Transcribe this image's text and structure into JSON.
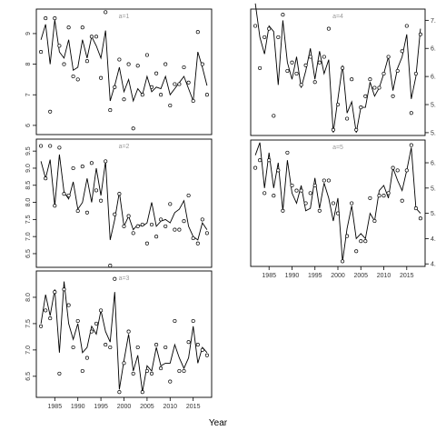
{
  "chart_data": {
    "type": "line",
    "xlabel": "Year",
    "panels": [
      {
        "label": "a=1",
        "x": [
          1982,
          1983,
          1984,
          1985,
          1986,
          1987,
          1988,
          1989,
          1990,
          1991,
          1992,
          1993,
          1994,
          1995,
          1996,
          1997,
          1998,
          1999,
          2000,
          2001,
          2002,
          2003,
          2004,
          2005,
          2006,
          2007,
          2008,
          2009,
          2010,
          2011,
          2012,
          2013,
          2014,
          2015,
          2016,
          2017,
          2018
        ],
        "points": [
          8.4,
          9.5,
          6.45,
          9.5,
          8.6,
          8.0,
          9.2,
          7.6,
          7.5,
          9.2,
          8.1,
          8.9,
          8.9,
          7.55,
          9.7,
          6.5,
          7.25,
          8.15,
          6.85,
          8.0,
          5.9,
          7.95,
          7.0,
          8.3,
          7.25,
          7.7,
          7.0,
          8.0,
          6.65,
          7.35,
          7.35,
          7.9,
          7.4,
          6.8,
          9.05,
          8.0,
          7.0
        ],
        "line": [
          8.8,
          9.3,
          8.0,
          9.45,
          8.4,
          8.2,
          8.8,
          7.8,
          7.9,
          8.8,
          8.2,
          8.9,
          8.6,
          8.2,
          9.1,
          6.8,
          7.3,
          7.9,
          7.1,
          7.5,
          6.8,
          7.2,
          7.0,
          7.6,
          7.1,
          7.25,
          7.2,
          7.6,
          7.0,
          7.2,
          7.4,
          7.6,
          7.2,
          6.8,
          8.4,
          7.9,
          7.3
        ],
        "ylim": [
          5.7,
          9.8
        ],
        "yticks": [
          6,
          7,
          8,
          9
        ]
      },
      {
        "label": "a=2",
        "x": [
          1982,
          1983,
          1984,
          1985,
          1986,
          1987,
          1988,
          1989,
          1990,
          1991,
          1992,
          1993,
          1994,
          1995,
          1996,
          1997,
          1998,
          1999,
          2000,
          2001,
          2002,
          2003,
          2004,
          2005,
          2006,
          2007,
          2008,
          2009,
          2010,
          2011,
          2012,
          2013,
          2014,
          2015,
          2016,
          2017,
          2018
        ],
        "points": [
          9.65,
          8.7,
          9.65,
          7.9,
          9.6,
          8.25,
          8.2,
          9.0,
          7.75,
          9.05,
          7.7,
          9.15,
          8.35,
          8.05,
          9.2,
          6.15,
          7.65,
          8.25,
          7.3,
          7.6,
          7.1,
          7.3,
          7.35,
          6.8,
          7.35,
          7.0,
          7.5,
          7.3,
          7.95,
          7.2,
          7.2,
          7.45,
          8.2,
          6.95,
          6.8,
          7.5,
          7.1
        ],
        "line": [
          9.2,
          8.7,
          9.25,
          7.9,
          9.4,
          8.3,
          8.1,
          8.6,
          7.8,
          8.0,
          8.7,
          8.0,
          9.0,
          8.2,
          9.2,
          6.9,
          7.5,
          8.3,
          7.3,
          7.6,
          7.2,
          7.35,
          7.3,
          7.4,
          8.0,
          7.3,
          7.45,
          7.5,
          7.4,
          7.7,
          7.8,
          8.05,
          7.3,
          7.0,
          6.9,
          7.4,
          7.2
        ],
        "ylim": [
          6.1,
          9.85
        ],
        "yticks": [
          6.5,
          7.0,
          7.5,
          8.0,
          8.5,
          9.0,
          9.5
        ]
      },
      {
        "label": "a=3",
        "x": [
          1982,
          1983,
          1984,
          1985,
          1986,
          1987,
          1988,
          1989,
          1990,
          1991,
          1992,
          1993,
          1994,
          1995,
          1996,
          1997,
          1998,
          1999,
          2000,
          2001,
          2002,
          2003,
          2004,
          2005,
          2006,
          2007,
          2008,
          2009,
          2010,
          2011,
          2012,
          2013,
          2014,
          2015,
          2016,
          2017,
          2018
        ],
        "points": [
          7.45,
          7.75,
          7.6,
          8.1,
          6.55,
          8.15,
          7.85,
          7.05,
          7.55,
          6.6,
          6.85,
          7.35,
          7.5,
          7.75,
          7.1,
          7.05,
          8.35,
          6.2,
          6.75,
          7.35,
          6.55,
          7.05,
          6.2,
          6.6,
          6.55,
          7.1,
          6.65,
          7.05,
          6.4,
          7.55,
          6.6,
          6.6,
          7.15,
          7.55,
          7.1,
          7.0,
          6.9
        ],
        "line": [
          7.5,
          8.05,
          7.65,
          8.15,
          6.95,
          8.3,
          7.5,
          7.2,
          7.5,
          6.95,
          7.05,
          7.45,
          7.3,
          7.75,
          7.35,
          7.15,
          8.1,
          6.25,
          6.8,
          7.3,
          6.6,
          6.9,
          6.2,
          6.7,
          6.6,
          7.05,
          6.7,
          6.75,
          6.75,
          7.1,
          6.85,
          6.65,
          6.85,
          7.45,
          6.75,
          7.05,
          6.95
        ],
        "ylim": [
          6.1,
          8.5
        ],
        "yticks": [
          6.5,
          7.0,
          7.5,
          8.0
        ]
      },
      {
        "label": "a=4",
        "x": [
          1982,
          1983,
          1984,
          1985,
          1986,
          1987,
          1988,
          1989,
          1990,
          1991,
          1992,
          1993,
          1994,
          1995,
          1996,
          1997,
          1998,
          1999,
          2000,
          2001,
          2002,
          2003,
          2004,
          2005,
          2006,
          2007,
          2008,
          2009,
          2010,
          2011,
          2012,
          2013,
          2014,
          2015,
          2016,
          2017,
          2018
        ],
        "points": [
          6.9,
          6.15,
          6.7,
          6.85,
          5.3,
          6.7,
          7.1,
          6.1,
          6.25,
          6.05,
          5.85,
          6.2,
          6.35,
          5.9,
          6.25,
          6.35,
          6.85,
          5.05,
          5.5,
          6.15,
          5.25,
          5.95,
          5.05,
          5.45,
          5.65,
          5.95,
          5.8,
          5.8,
          6.05,
          6.35,
          5.65,
          6.1,
          6.45,
          6.9,
          5.35,
          6.05,
          6.75
        ],
        "line": [
          7.3,
          6.7,
          6.4,
          6.9,
          6.8,
          5.85,
          7.0,
          6.25,
          5.95,
          6.35,
          5.8,
          6.1,
          6.5,
          5.95,
          6.45,
          6.05,
          6.3,
          5.0,
          5.6,
          6.2,
          5.35,
          5.55,
          5.0,
          5.45,
          5.45,
          5.9,
          5.65,
          5.8,
          6.05,
          6.35,
          5.75,
          6.15,
          6.35,
          6.75,
          5.6,
          6.0,
          6.85
        ],
        "ylim": [
          4.95,
          7.2
        ],
        "yticks": [
          5.0,
          5.5,
          6.0,
          6.5,
          7.0
        ]
      },
      {
        "label": "a=5",
        "x": [
          1982,
          1983,
          1984,
          1985,
          1986,
          1987,
          1988,
          1989,
          1990,
          1991,
          1992,
          1993,
          1994,
          1995,
          1996,
          1997,
          1998,
          1999,
          2000,
          2001,
          2002,
          2003,
          2004,
          2005,
          2006,
          2007,
          2008,
          2009,
          2010,
          2011,
          2012,
          2013,
          2014,
          2015,
          2016,
          2017,
          2018
        ],
        "points": [
          5.9,
          6.05,
          5.4,
          6.05,
          5.35,
          5.85,
          5.05,
          6.2,
          5.55,
          5.45,
          5.45,
          5.2,
          5.4,
          5.55,
          5.05,
          5.65,
          5.65,
          5.2,
          5.0,
          4.05,
          4.55,
          5.2,
          4.25,
          4.45,
          4.45,
          5.3,
          4.85,
          5.35,
          5.35,
          5.4,
          5.9,
          5.85,
          5.25,
          5.85,
          6.35,
          5.1,
          4.9
        ],
        "line": [
          6.15,
          6.4,
          5.5,
          6.2,
          5.5,
          6.0,
          5.05,
          6.05,
          5.4,
          5.2,
          5.55,
          5.05,
          5.1,
          5.7,
          5.1,
          5.6,
          5.3,
          4.85,
          5.3,
          4.05,
          4.7,
          5.15,
          4.5,
          4.6,
          4.5,
          5.0,
          4.85,
          5.45,
          5.55,
          5.3,
          5.9,
          5.65,
          5.45,
          5.85,
          6.3,
          5.1,
          5.0
        ],
        "ylim": [
          3.95,
          6.45
        ],
        "yticks": [
          4.0,
          4.5,
          5.0,
          5.5,
          6.0
        ]
      }
    ],
    "xticks": [
      1985,
      1990,
      1995,
      2000,
      2005,
      2010,
      2015
    ],
    "xlim": [
      1981,
      2019
    ]
  }
}
